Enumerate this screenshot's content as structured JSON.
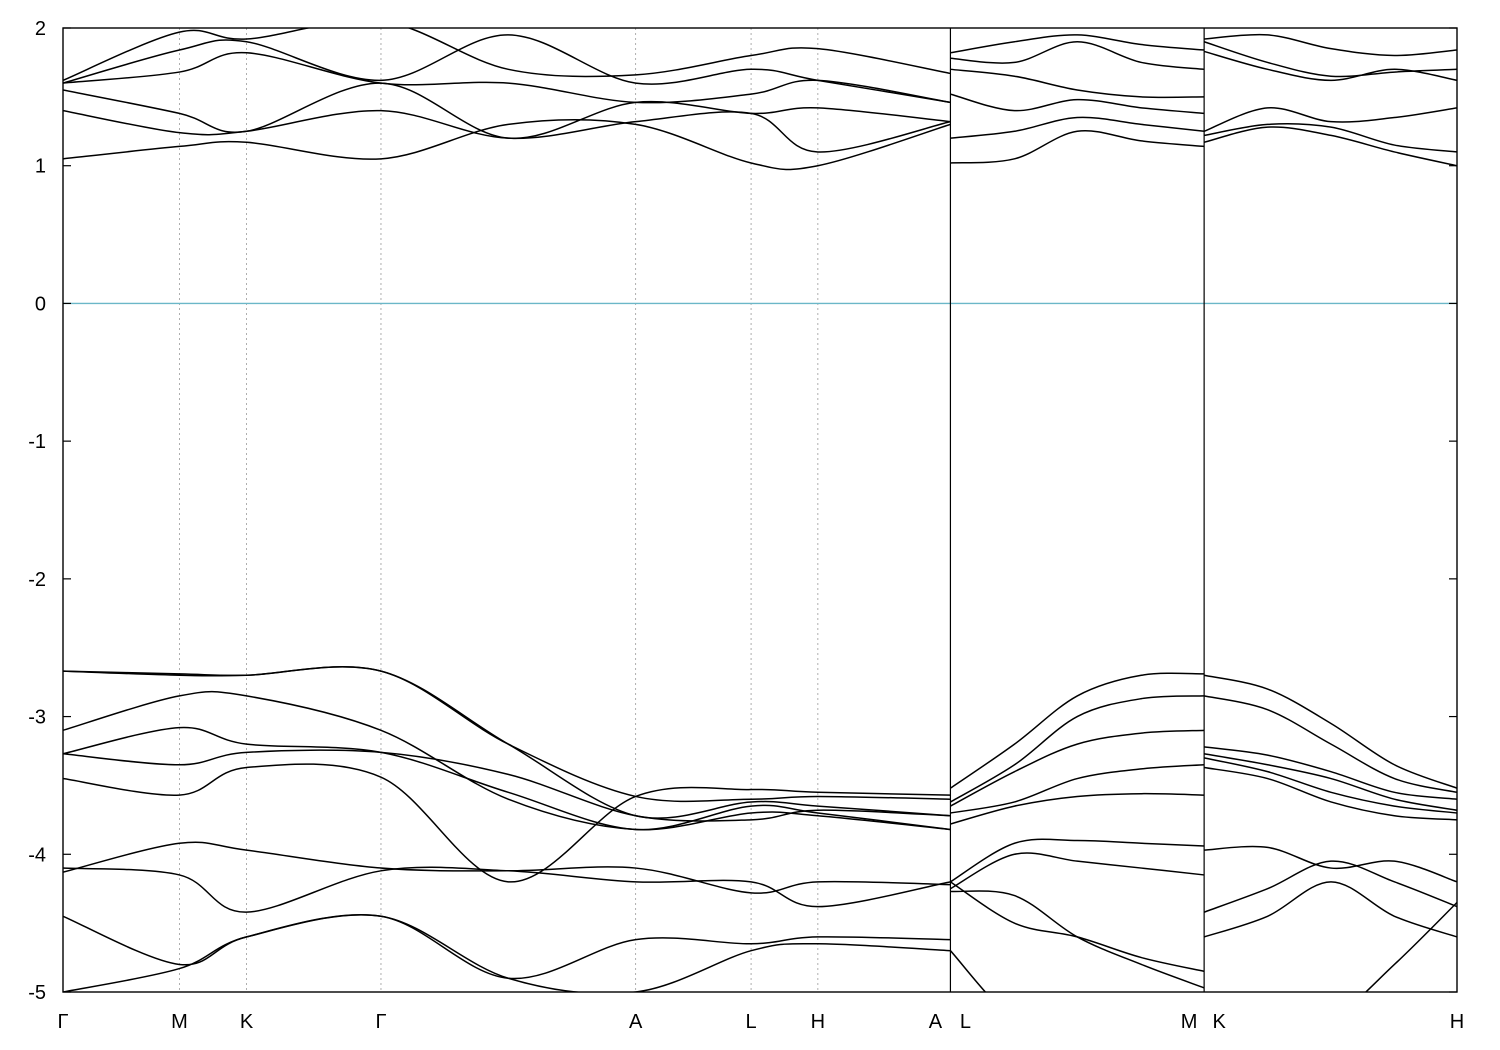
{
  "chart_data": {
    "type": "line",
    "title": "",
    "xlabel": "",
    "ylabel": "",
    "ylim": [
      -5,
      2
    ],
    "yticks": [
      -5,
      -4,
      -3,
      -2,
      -1,
      0,
      1,
      2
    ],
    "grid": "vertical dashed lines at high-symmetry points",
    "fermi_level": {
      "y": 0,
      "color": "#6bb7c8"
    },
    "line_color": "#000000",
    "xlim": [
      0,
      1
    ],
    "kpoints": [
      {
        "label": "Γ",
        "x": 0.0
      },
      {
        "label": "M",
        "x": 0.0835
      },
      {
        "label": "K",
        "x": 0.1317
      },
      {
        "label": "Γ",
        "x": 0.2281
      },
      {
        "label": "A",
        "x": 0.4108
      },
      {
        "label": "L",
        "x": 0.4936
      },
      {
        "label": "H",
        "x": 0.5415
      },
      {
        "label": "A",
        "x": 0.6366
      },
      {
        "label": "L",
        "x": 0.6366
      },
      {
        "label": "M",
        "x": 0.8186
      },
      {
        "label": "K",
        "x": 0.8186
      },
      {
        "label": "H",
        "x": 1.0
      }
    ],
    "breaks": [
      0.6366,
      0.8186
    ],
    "segments": [
      {
        "range": [
          0.0,
          0.6366
        ],
        "stops": [
          0.0,
          0.0835,
          0.1317,
          0.2281,
          0.3194,
          0.4108,
          0.4936,
          0.5415,
          0.6366
        ],
        "bands": [
          [
            -5.0,
            -4.83,
            -4.6,
            -4.45,
            -4.9,
            -5.0,
            -4.7,
            -4.65,
            -4.7
          ],
          [
            -4.45,
            -4.8,
            -4.6,
            -4.45,
            -4.9,
            -4.62,
            -4.65,
            -4.6,
            -4.62
          ],
          [
            -4.1,
            -4.15,
            -4.42,
            -4.12,
            -4.12,
            -4.2,
            -4.2,
            -4.38,
            -4.2
          ],
          [
            -4.13,
            -3.92,
            -3.97,
            -4.1,
            -4.12,
            -4.1,
            -4.28,
            -4.2,
            -4.22
          ],
          [
            -3.45,
            -3.57,
            -3.37,
            -3.44,
            -4.2,
            -3.58,
            -3.53,
            -3.55,
            -3.57
          ],
          [
            -3.27,
            -3.35,
            -3.26,
            -3.26,
            -3.42,
            -3.72,
            -3.75,
            -3.68,
            -3.72
          ],
          [
            -3.27,
            -3.08,
            -3.2,
            -3.26,
            -3.55,
            -3.82,
            -3.65,
            -3.7,
            -3.82
          ],
          [
            -3.1,
            -2.85,
            -2.85,
            -3.1,
            -3.6,
            -3.82,
            -3.7,
            -3.72,
            -3.82
          ],
          [
            -2.67,
            -2.69,
            -2.7,
            -2.67,
            -3.2,
            -3.72,
            -3.62,
            -3.65,
            -3.72
          ],
          [
            -2.67,
            -2.7,
            -2.7,
            -2.67,
            -3.2,
            -3.58,
            -3.6,
            -3.58,
            -3.6
          ],
          [
            1.05,
            1.14,
            1.17,
            1.05,
            1.3,
            1.3,
            1.02,
            1.0,
            1.3
          ],
          [
            1.4,
            1.24,
            1.25,
            1.4,
            1.2,
            1.32,
            1.38,
            1.1,
            1.32
          ],
          [
            1.55,
            1.38,
            1.25,
            1.6,
            1.2,
            1.46,
            1.38,
            1.42,
            1.32
          ],
          [
            1.6,
            1.68,
            1.82,
            1.6,
            1.6,
            1.46,
            1.52,
            1.62,
            1.46
          ],
          [
            1.6,
            1.84,
            1.9,
            1.62,
            1.95,
            1.6,
            1.7,
            1.62,
            1.46
          ],
          [
            1.62,
            1.97,
            1.92,
            2.05,
            1.7,
            1.66,
            1.8,
            1.85,
            1.67
          ]
        ]
      },
      {
        "range": [
          0.6366,
          0.8186
        ],
        "stops": [
          0.6366,
          0.6826,
          0.7276,
          0.7736,
          0.8186
        ],
        "bands": [
          [
            -4.7,
            -5.2,
            -5.3,
            -5.3,
            -5.3
          ],
          [
            -4.2,
            -4.5,
            -4.6,
            -4.75,
            -4.85
          ],
          [
            -4.27,
            -4.3,
            -4.6,
            -4.8,
            -4.97
          ],
          [
            -4.25,
            -4.0,
            -4.05,
            -4.1,
            -4.15
          ],
          [
            -4.2,
            -3.92,
            -3.9,
            -3.92,
            -3.94
          ],
          [
            -3.78,
            -3.65,
            -3.58,
            -3.56,
            -3.57
          ],
          [
            -3.7,
            -3.62,
            -3.45,
            -3.38,
            -3.35
          ],
          [
            -3.65,
            -3.4,
            -3.2,
            -3.12,
            -3.1
          ],
          [
            -3.62,
            -3.35,
            -3.0,
            -2.87,
            -2.85
          ],
          [
            -3.52,
            -3.2,
            -2.85,
            -2.7,
            -2.69
          ],
          [
            1.02,
            1.05,
            1.25,
            1.18,
            1.14
          ],
          [
            1.2,
            1.25,
            1.35,
            1.3,
            1.25
          ],
          [
            1.52,
            1.4,
            1.48,
            1.42,
            1.38
          ],
          [
            1.7,
            1.65,
            1.55,
            1.5,
            1.5
          ],
          [
            1.78,
            1.75,
            1.9,
            1.75,
            1.7
          ],
          [
            1.82,
            1.9,
            1.95,
            1.88,
            1.84
          ]
        ]
      },
      {
        "range": [
          0.8186,
          1.0
        ],
        "stops": [
          0.8186,
          0.8641,
          0.9096,
          0.9551,
          1.0
        ],
        "bands": [
          [
            -5.3,
            -5.3,
            -5.2,
            -4.8,
            -4.35
          ],
          [
            -4.6,
            -4.45,
            -4.2,
            -4.45,
            -4.6
          ],
          [
            -4.42,
            -4.25,
            -4.05,
            -4.2,
            -4.38
          ],
          [
            -3.97,
            -3.95,
            -4.1,
            -4.05,
            -4.2
          ],
          [
            -3.37,
            -3.45,
            -3.62,
            -3.72,
            -3.75
          ],
          [
            -3.3,
            -3.4,
            -3.55,
            -3.65,
            -3.7
          ],
          [
            -3.27,
            -3.35,
            -3.45,
            -3.6,
            -3.68
          ],
          [
            -3.22,
            -3.28,
            -3.4,
            -3.55,
            -3.6
          ],
          [
            -2.85,
            -2.95,
            -3.2,
            -3.45,
            -3.55
          ],
          [
            -2.7,
            -2.8,
            -3.05,
            -3.35,
            -3.52
          ],
          [
            1.17,
            1.28,
            1.22,
            1.1,
            1.0
          ],
          [
            1.22,
            1.3,
            1.28,
            1.15,
            1.1
          ],
          [
            1.25,
            1.42,
            1.32,
            1.35,
            1.42
          ],
          [
            1.83,
            1.7,
            1.62,
            1.7,
            1.62
          ],
          [
            1.9,
            1.75,
            1.65,
            1.68,
            1.7
          ],
          [
            1.92,
            1.95,
            1.85,
            1.8,
            1.84
          ]
        ]
      }
    ]
  }
}
